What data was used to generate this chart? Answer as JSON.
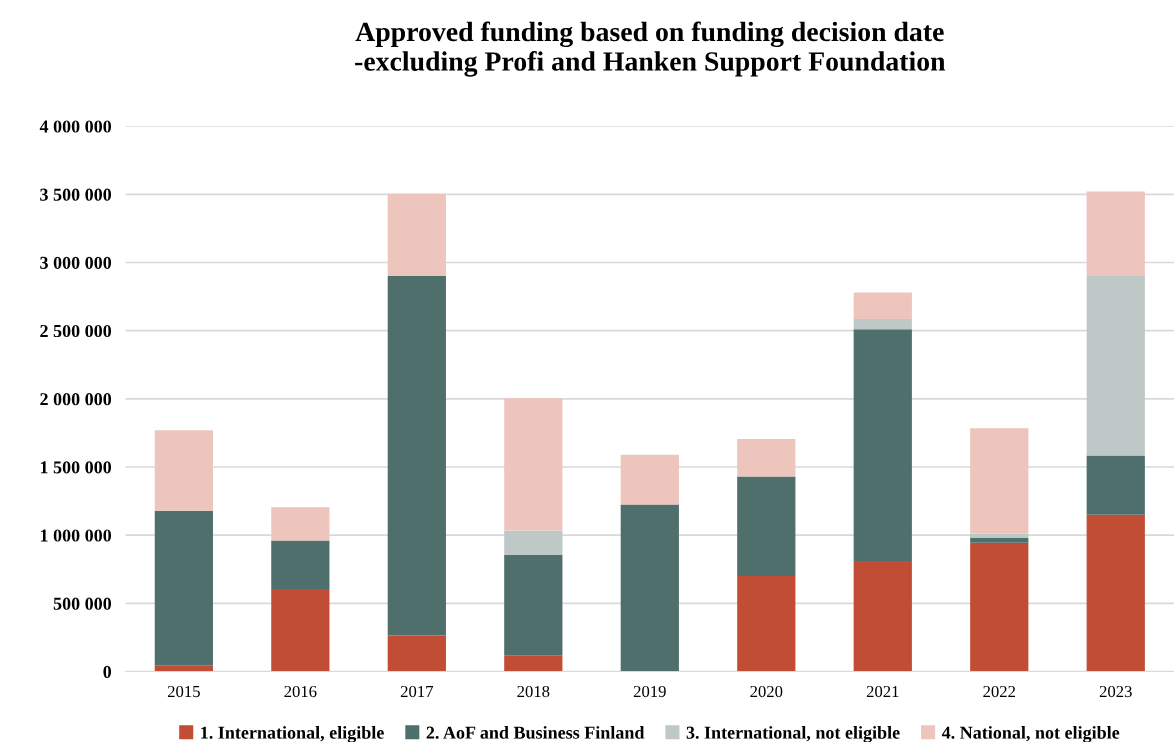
{
  "chart_data": {
    "type": "bar",
    "title": "Approved funding based on funding decision date\n-excluding Profi and Hanken Support Foundation",
    "categories": [
      "2015",
      "2016",
      "2017",
      "2018",
      "2019",
      "2020",
      "2021",
      "2022",
      "2023"
    ],
    "stacked": true,
    "series": [
      {
        "name": "1. International, eligible",
        "color": "#c24d35",
        "values": [
          45000,
          605000,
          265000,
          120000,
          0,
          700000,
          810000,
          945000,
          1150000
        ]
      },
      {
        "name": "2. AoF and Business Finland",
        "color": "#4f6f6d",
        "values": [
          1135000,
          355000,
          2635000,
          735000,
          1225000,
          730000,
          1700000,
          35000,
          435000
        ]
      },
      {
        "name": "3. International, not eligible",
        "color": "#bdc8c7",
        "values": [
          0,
          0,
          0,
          180000,
          null,
          0,
          75000,
          30000,
          1315000
        ]
      },
      {
        "name": "4. National, not eligible",
        "color": "#edc5bd",
        "values": [
          590000,
          245000,
          605000,
          970000,
          365000,
          275000,
          195000,
          775000,
          620000
        ]
      }
    ],
    "ylim": [
      0,
      4000000
    ],
    "yticks": [
      {
        "value": 0,
        "label": "0"
      },
      {
        "value": 500000,
        "label": "500 000"
      },
      {
        "value": 1000000,
        "label": "1 000 000"
      },
      {
        "value": 1500000,
        "label": "1 500 000"
      },
      {
        "value": 2000000,
        "label": "2 000 000"
      },
      {
        "value": 2500000,
        "label": "2 500 000"
      },
      {
        "value": 3000000,
        "label": "3 000 000"
      },
      {
        "value": 3500000,
        "label": "3 500 000"
      },
      {
        "value": 4000000,
        "label": "4 000 000"
      }
    ],
    "grid": "y",
    "legend": "bottom"
  }
}
